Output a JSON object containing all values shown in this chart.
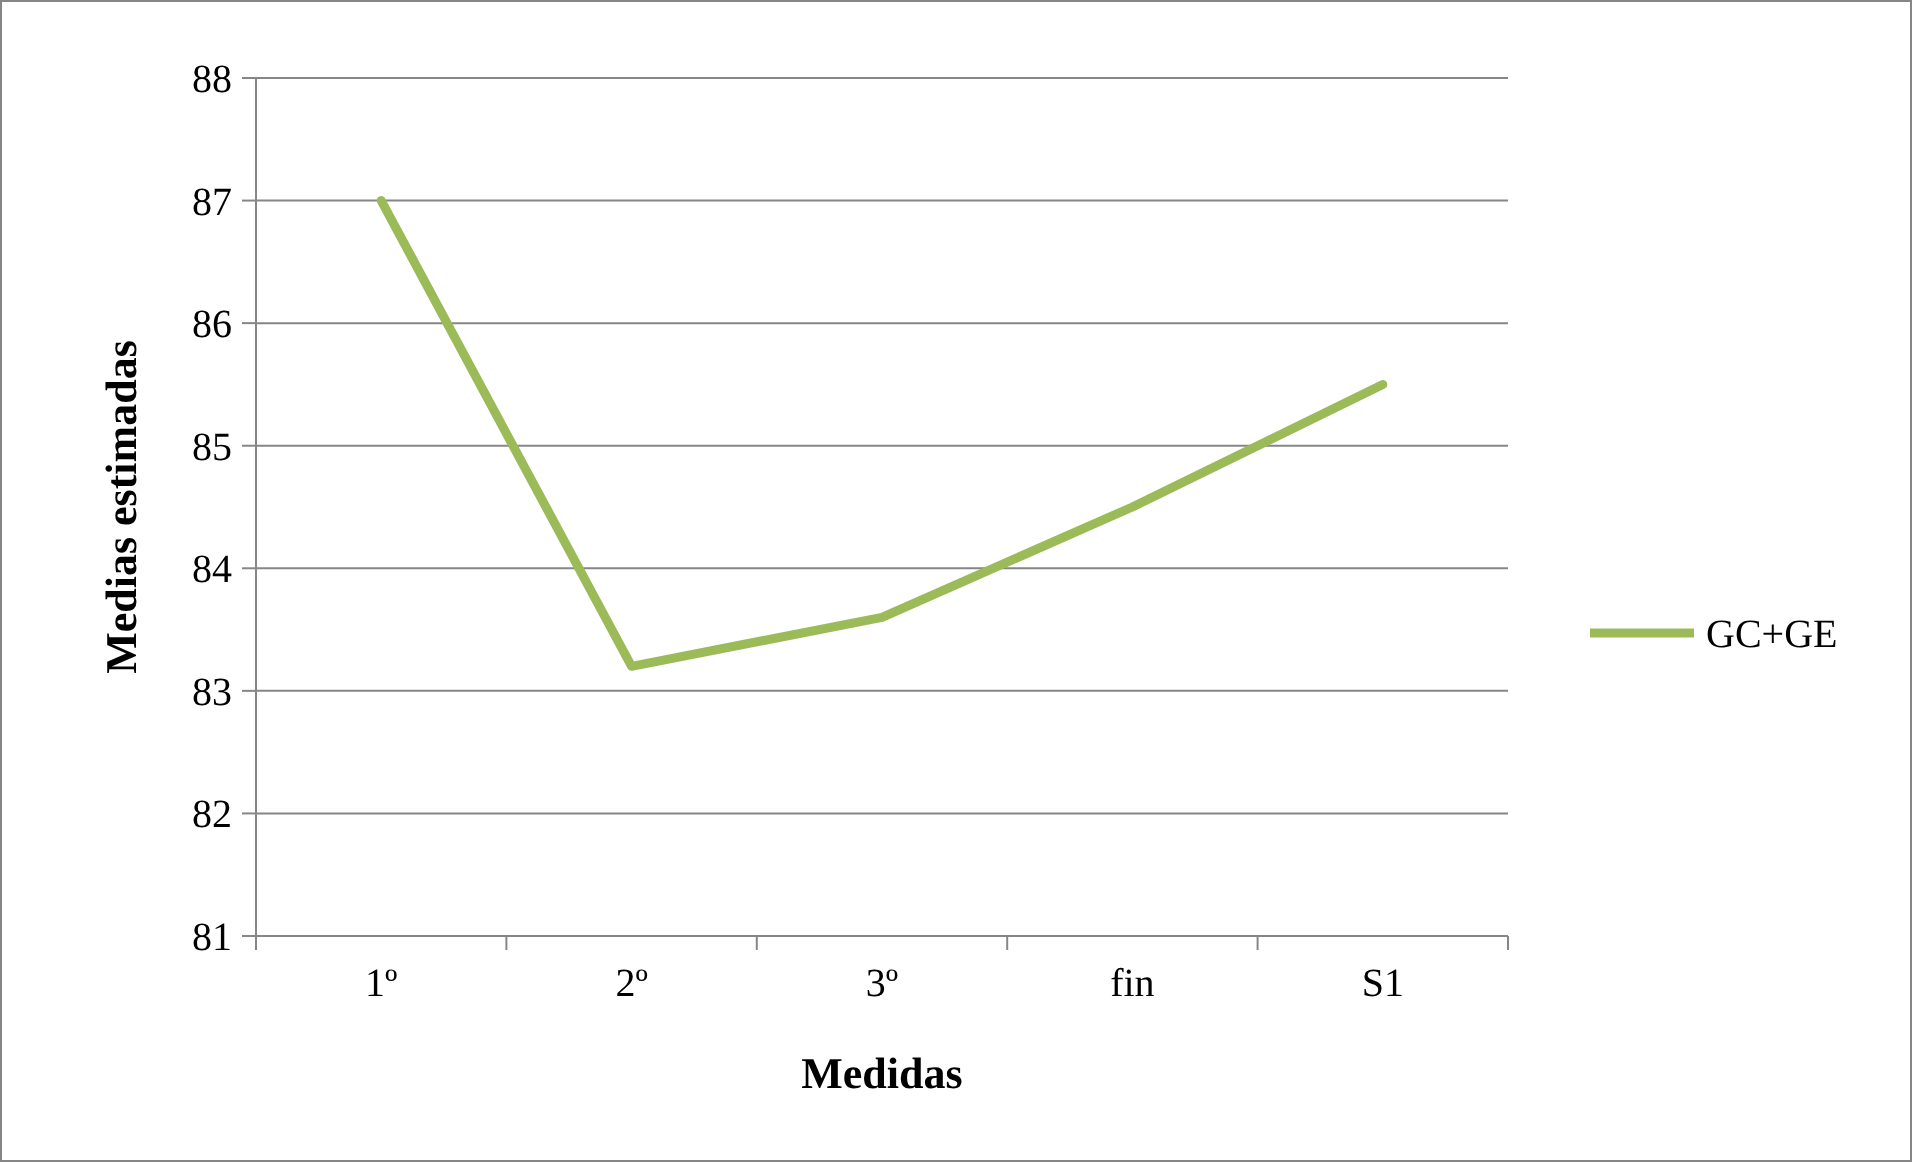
{
  "chart_data": {
    "type": "line",
    "xlabel": "Medidas",
    "ylabel": "Medias estimadas",
    "categories": [
      "1º",
      "2º",
      "3º",
      "fin",
      "S1"
    ],
    "series": [
      {
        "name": "GC+GE",
        "color": "#9bbb59",
        "values": [
          87,
          83.2,
          83.6,
          84.5,
          85.5
        ]
      }
    ],
    "ylim": [
      81,
      88
    ],
    "yticks": [
      81,
      82,
      83,
      84,
      85,
      86,
      87,
      88
    ],
    "grid": "y",
    "legend": "right",
    "marker": "none",
    "line_style": "solid"
  }
}
